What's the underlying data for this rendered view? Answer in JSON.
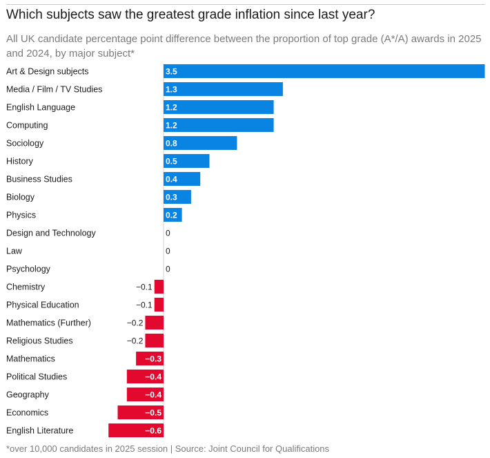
{
  "header": {
    "title": "Which subjects saw the greatest grade inflation since last year?",
    "subtitle": "All UK candidate percentage point difference between the proportion of top grade (A*/A) awards in 2025 and 2024, by major subject*"
  },
  "footer": {
    "note": "*over 10,000 candidates in 2025 session | Source: Joint Council for Qualifications"
  },
  "colors": {
    "positive": "#0a84e2",
    "negative": "#e3092e",
    "label_inside": "#ffffff",
    "label_outside": "#1a1a1a"
  },
  "chart_data": {
    "type": "bar",
    "orientation": "horizontal",
    "title": "Which subjects saw the greatest grade inflation since last year?",
    "xlabel": "",
    "ylabel": "",
    "xlim": [
      -0.6,
      3.5
    ],
    "categories": [
      "Art & Design subjects",
      "Media / Film / TV Studies",
      "English Language",
      "Computing",
      "Sociology",
      "History",
      "Business Studies",
      "Biology",
      "Physics",
      "Design and Technology",
      "Law",
      "Psychology",
      "Chemistry",
      "Physical Education",
      "Mathematics (Further)",
      "Religious Studies",
      "Mathematics",
      "Political Studies",
      "Geography",
      "Economics",
      "English Literature"
    ],
    "values": [
      3.5,
      1.3,
      1.2,
      1.2,
      0.8,
      0.5,
      0.4,
      0.3,
      0.2,
      0,
      0,
      0,
      -0.1,
      -0.1,
      -0.2,
      -0.2,
      -0.3,
      -0.4,
      -0.4,
      -0.5,
      -0.6
    ],
    "value_labels": [
      "3.5",
      "1.3",
      "1.2",
      "1.2",
      "0.8",
      "0.5",
      "0.4",
      "0.3",
      "0.2",
      "0",
      "0",
      "0",
      "−0.1",
      "−0.1",
      "−0.2",
      "−0.2",
      "−0.3",
      "−0.4",
      "−0.4",
      "−0.5",
      "−0.6"
    ]
  }
}
